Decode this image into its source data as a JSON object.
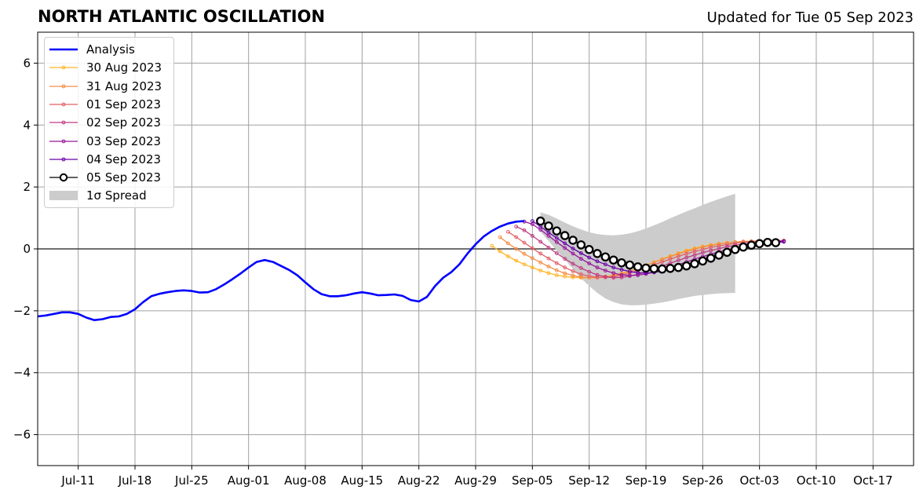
{
  "header": {
    "title": "NORTH ATLANTIC OSCILLATION",
    "updated": "Updated for Tue 05 Sep 2023"
  },
  "chart_data": {
    "type": "line",
    "title": "NORTH ATLANTIC OSCILLATION",
    "xlabel": "",
    "ylabel": "",
    "x_range": [
      "2023-07-06",
      "2023-10-22"
    ],
    "ylim": [
      -7,
      7
    ],
    "y_ticks": [
      -6,
      -4,
      -2,
      0,
      2,
      4,
      6
    ],
    "y_tick_labels": [
      "−6",
      "−4",
      "−2",
      "0",
      "2",
      "4",
      "6"
    ],
    "x_ticks": [
      "2023-07-11",
      "2023-07-18",
      "2023-07-25",
      "2023-08-01",
      "2023-08-08",
      "2023-08-15",
      "2023-08-22",
      "2023-08-29",
      "2023-09-05",
      "2023-09-12",
      "2023-09-19",
      "2023-09-26",
      "2023-10-03",
      "2023-10-10",
      "2023-10-17"
    ],
    "x_tick_labels": [
      "Jul-11",
      "Jul-18",
      "Jul-25",
      "Aug-01",
      "Aug-08",
      "Aug-15",
      "Aug-22",
      "Aug-29",
      "Sep-05",
      "Sep-12",
      "Sep-19",
      "Sep-26",
      "Oct-03",
      "Oct-10",
      "Oct-17"
    ],
    "grid": true,
    "legend_position": "top-left",
    "analysis": {
      "name": "Analysis",
      "color": "#0000ff",
      "start": "2023-07-06",
      "values": [
        -2.18,
        -2.15,
        -2.1,
        -2.05,
        -2.05,
        -2.1,
        -2.22,
        -2.3,
        -2.27,
        -2.2,
        -2.18,
        -2.1,
        -1.95,
        -1.72,
        -1.53,
        -1.45,
        -1.4,
        -1.36,
        -1.34,
        -1.36,
        -1.41,
        -1.4,
        -1.3,
        -1.15,
        -0.98,
        -0.8,
        -0.6,
        -0.42,
        -0.36,
        -0.42,
        -0.55,
        -0.68,
        -0.85,
        -1.08,
        -1.3,
        -1.46,
        -1.53,
        -1.53,
        -1.5,
        -1.44,
        -1.4,
        -1.44,
        -1.5,
        -1.49,
        -1.47,
        -1.52,
        -1.65,
        -1.7,
        -1.55,
        -1.2,
        -0.93,
        -0.75,
        -0.5,
        -0.15,
        0.15,
        0.4,
        0.58,
        0.72,
        0.82,
        0.88,
        0.9
      ]
    },
    "spread": {
      "name": "1σ Spread",
      "color": "#cccccc",
      "start": "2023-09-06",
      "upper": [
        1.18,
        1.1,
        0.98,
        0.85,
        0.73,
        0.63,
        0.54,
        0.48,
        0.45,
        0.44,
        0.46,
        0.5,
        0.57,
        0.66,
        0.76,
        0.87,
        0.99,
        1.1,
        1.21,
        1.31,
        1.42,
        1.52,
        1.61,
        1.7,
        1.78
      ],
      "lower": [
        0.55,
        0.25,
        -0.05,
        -0.35,
        -0.65,
        -0.95,
        -1.2,
        -1.42,
        -1.6,
        -1.72,
        -1.79,
        -1.82,
        -1.82,
        -1.8,
        -1.77,
        -1.73,
        -1.68,
        -1.62,
        -1.57,
        -1.52,
        -1.49,
        -1.46,
        -1.44,
        -1.43,
        -1.42
      ]
    },
    "series": [
      {
        "name": "30 Aug 2023",
        "color": "#ffb326",
        "start": "2023-08-31",
        "values": [
          0.1,
          -0.08,
          -0.24,
          -0.38,
          -0.5,
          -0.6,
          -0.7,
          -0.78,
          -0.85,
          -0.89,
          -0.92,
          -0.93,
          -0.93,
          -0.92,
          -0.89,
          -0.85,
          -0.79,
          -0.72,
          -0.63,
          -0.53,
          -0.43,
          -0.33,
          -0.23,
          -0.14,
          -0.05,
          0.02,
          0.08,
          0.13,
          0.17,
          0.2,
          0.22,
          0.23,
          0.24,
          0.25,
          0.25,
          0.26,
          0.26
        ]
      },
      {
        "name": "31 Aug 2023",
        "color": "#f48d45",
        "start": "2023-09-01",
        "values": [
          0.38,
          0.18,
          0.0,
          -0.16,
          -0.3,
          -0.44,
          -0.57,
          -0.69,
          -0.79,
          -0.86,
          -0.91,
          -0.93,
          -0.93,
          -0.91,
          -0.87,
          -0.81,
          -0.73,
          -0.64,
          -0.54,
          -0.44,
          -0.34,
          -0.25,
          -0.16,
          -0.08,
          -0.01,
          0.06,
          0.11,
          0.16,
          0.19,
          0.22,
          0.24,
          0.25,
          0.26,
          0.26,
          0.27,
          0.27
        ]
      },
      {
        "name": "01 Sep 2023",
        "color": "#e35f66",
        "start": "2023-09-02",
        "values": [
          0.55,
          0.38,
          0.2,
          0.02,
          -0.15,
          -0.31,
          -0.46,
          -0.6,
          -0.72,
          -0.82,
          -0.88,
          -0.92,
          -0.92,
          -0.9,
          -0.85,
          -0.78,
          -0.7,
          -0.61,
          -0.51,
          -0.42,
          -0.33,
          -0.24,
          -0.16,
          -0.08,
          -0.02,
          0.05,
          0.1,
          0.14,
          0.18,
          0.21,
          0.23,
          0.24,
          0.25,
          0.26,
          0.26
        ]
      },
      {
        "name": "02 Sep 2023",
        "color": "#c13b82",
        "start": "2023-09-03",
        "values": [
          0.72,
          0.6,
          0.42,
          0.23,
          0.04,
          -0.14,
          -0.32,
          -0.48,
          -0.62,
          -0.74,
          -0.84,
          -0.9,
          -0.93,
          -0.92,
          -0.88,
          -0.82,
          -0.74,
          -0.65,
          -0.55,
          -0.46,
          -0.37,
          -0.28,
          -0.2,
          -0.12,
          -0.05,
          0.01,
          0.07,
          0.12,
          0.16,
          0.19,
          0.22,
          0.24,
          0.25,
          0.26
        ]
      },
      {
        "name": "03 Sep 2023",
        "color": "#9a179b",
        "start": "2023-09-04",
        "values": [
          0.88,
          0.8,
          0.62,
          0.42,
          0.22,
          0.03,
          -0.15,
          -0.32,
          -0.47,
          -0.6,
          -0.7,
          -0.78,
          -0.84,
          -0.86,
          -0.85,
          -0.81,
          -0.75,
          -0.68,
          -0.6,
          -0.51,
          -0.42,
          -0.33,
          -0.25,
          -0.17,
          -0.1,
          -0.03,
          0.03,
          0.08,
          0.13,
          0.17,
          0.2,
          0.23,
          0.25
        ]
      },
      {
        "name": "04 Sep 2023",
        "color": "#6a00a8",
        "start": "2023-09-05",
        "values": [
          0.9,
          0.72,
          0.53,
          0.35,
          0.18,
          0.01,
          -0.14,
          -0.28,
          -0.4,
          -0.5,
          -0.6,
          -0.67,
          -0.73,
          -0.77,
          -0.78,
          -0.76,
          -0.72,
          -0.67,
          -0.6,
          -0.52,
          -0.44,
          -0.36,
          -0.28,
          -0.2,
          -0.13,
          -0.06,
          0.0,
          0.06,
          0.11,
          0.16,
          0.2,
          0.23
        ]
      },
      {
        "name": "05 Sep 2023",
        "color": "#000000",
        "start": "2023-09-06",
        "values": [
          0.9,
          0.74,
          0.58,
          0.43,
          0.28,
          0.13,
          -0.02,
          -0.15,
          -0.26,
          -0.36,
          -0.45,
          -0.52,
          -0.58,
          -0.62,
          -0.64,
          -0.65,
          -0.63,
          -0.6,
          -0.55,
          -0.48,
          -0.39,
          -0.3,
          -0.2,
          -0.11,
          -0.02,
          0.06,
          0.12,
          0.17,
          0.21,
          0.2
        ]
      }
    ]
  },
  "legend": {
    "items": [
      {
        "label": "Analysis"
      },
      {
        "label": "30 Aug 2023"
      },
      {
        "label": "31 Aug 2023"
      },
      {
        "label": "01 Sep 2023"
      },
      {
        "label": "02 Sep 2023"
      },
      {
        "label": "03 Sep 2023"
      },
      {
        "label": "04 Sep 2023"
      },
      {
        "label": "05 Sep 2023"
      },
      {
        "label": "1σ Spread"
      }
    ]
  }
}
